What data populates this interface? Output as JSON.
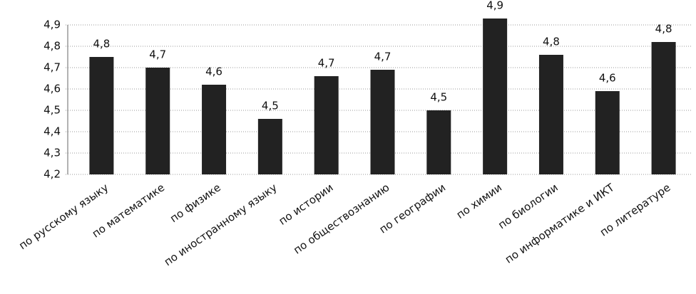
{
  "chart_data": {
    "type": "bar",
    "categories": [
      "по русскому языку",
      "по математике",
      "по физике",
      "по иностранному языку",
      "по истории",
      "по обществознанию",
      "по географии",
      "по химии",
      "по биологии",
      "по информатике и ИКТ",
      "по литературе"
    ],
    "values": [
      4.75,
      4.7,
      4.62,
      4.46,
      4.66,
      4.69,
      4.5,
      4.93,
      4.76,
      4.59,
      4.82
    ],
    "value_labels": [
      "4,8",
      "4,7",
      "4,6",
      "4,5",
      "4,7",
      "4,7",
      "4,5",
      "4,9",
      "4,8",
      "4,6",
      "4,8"
    ],
    "color": "#222222",
    "ylim": [
      4.2,
      4.9
    ],
    "yticks": [
      {
        "value": 4.2,
        "label": "4,2"
      },
      {
        "value": 4.3,
        "label": "4,3"
      },
      {
        "value": 4.4,
        "label": "4,4"
      },
      {
        "value": 4.5,
        "label": "4,5"
      },
      {
        "value": 4.6,
        "label": "4,6"
      },
      {
        "value": 4.7,
        "label": "4,7"
      },
      {
        "value": 4.8,
        "label": "4,8"
      },
      {
        "value": 4.9,
        "label": "4,9"
      }
    ],
    "grid": true
  }
}
